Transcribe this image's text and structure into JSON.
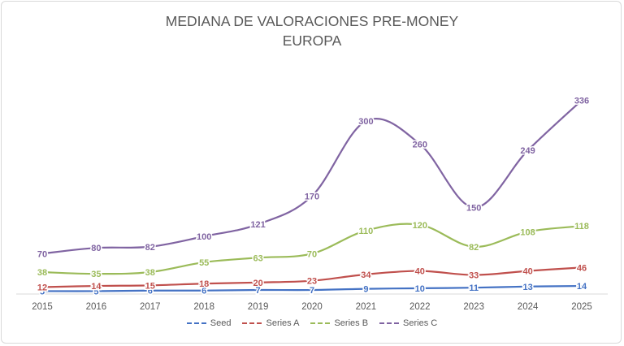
{
  "chart_data": {
    "type": "line",
    "title": "MEDIANA DE VALORACIONES PRE-MONEY",
    "subtitle": "EUROPA",
    "categories": [
      "2015",
      "2016",
      "2017",
      "2018",
      "2019",
      "2020",
      "2021",
      "2022",
      "2023",
      "2024",
      "2025"
    ],
    "series": [
      {
        "name": "Seed",
        "color": "#4472c4",
        "values": [
          5,
          5,
          6,
          6,
          7,
          7,
          9,
          10,
          11,
          13,
          14
        ]
      },
      {
        "name": "Series A",
        "color": "#c0504d",
        "values": [
          12,
          14,
          15,
          18,
          20,
          23,
          34,
          40,
          33,
          40,
          46
        ]
      },
      {
        "name": "Series B",
        "color": "#9bbb59",
        "values": [
          38,
          35,
          38,
          55,
          63,
          70,
          110,
          120,
          82,
          108,
          118
        ]
      },
      {
        "name": "Series C",
        "color": "#8064a2",
        "values": [
          70,
          80,
          82,
          100,
          121,
          170,
          300,
          260,
          150,
          249,
          336
        ]
      }
    ],
    "ylim": [
      0,
      360
    ],
    "grid": false,
    "legend_position": "bottom"
  }
}
